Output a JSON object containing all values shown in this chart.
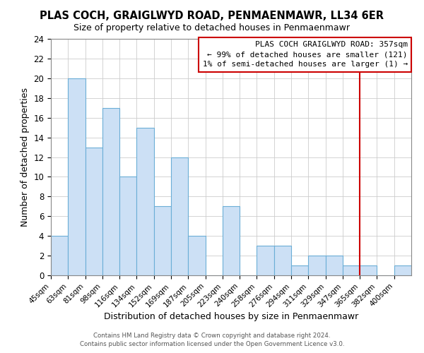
{
  "title": "PLAS COCH, GRAIGLWYD ROAD, PENMAENMAWR, LL34 6ER",
  "subtitle": "Size of property relative to detached houses in Penmaenmawr",
  "xlabel": "Distribution of detached houses by size in Penmaenmawr",
  "ylabel": "Number of detached properties",
  "bin_labels": [
    "45sqm",
    "63sqm",
    "81sqm",
    "98sqm",
    "116sqm",
    "134sqm",
    "152sqm",
    "169sqm",
    "187sqm",
    "205sqm",
    "223sqm",
    "240sqm",
    "258sqm",
    "276sqm",
    "294sqm",
    "311sqm",
    "329sqm",
    "347sqm",
    "365sqm",
    "382sqm",
    "400sqm"
  ],
  "bar_heights": [
    4,
    20,
    13,
    17,
    10,
    15,
    7,
    12,
    4,
    0,
    7,
    0,
    3,
    3,
    1,
    2,
    2,
    1,
    1,
    0,
    1
  ],
  "bar_color": "#cce0f5",
  "bar_edge_color": "#6baed6",
  "vline_x": 18,
  "vline_color": "#cc0000",
  "annotation_title": "PLAS COCH GRAIGLWYD ROAD: 357sqm",
  "annotation_line1": "← 99% of detached houses are smaller (121)",
  "annotation_line2": "1% of semi-detached houses are larger (1) →",
  "annotation_box_facecolor": "white",
  "annotation_box_edge": "#cc0000",
  "ylim": [
    0,
    24
  ],
  "yticks": [
    0,
    2,
    4,
    6,
    8,
    10,
    12,
    14,
    16,
    18,
    20,
    22,
    24
  ],
  "footer1": "Contains HM Land Registry data © Crown copyright and database right 2024.",
  "footer2": "Contains public sector information licensed under the Open Government Licence v3.0."
}
